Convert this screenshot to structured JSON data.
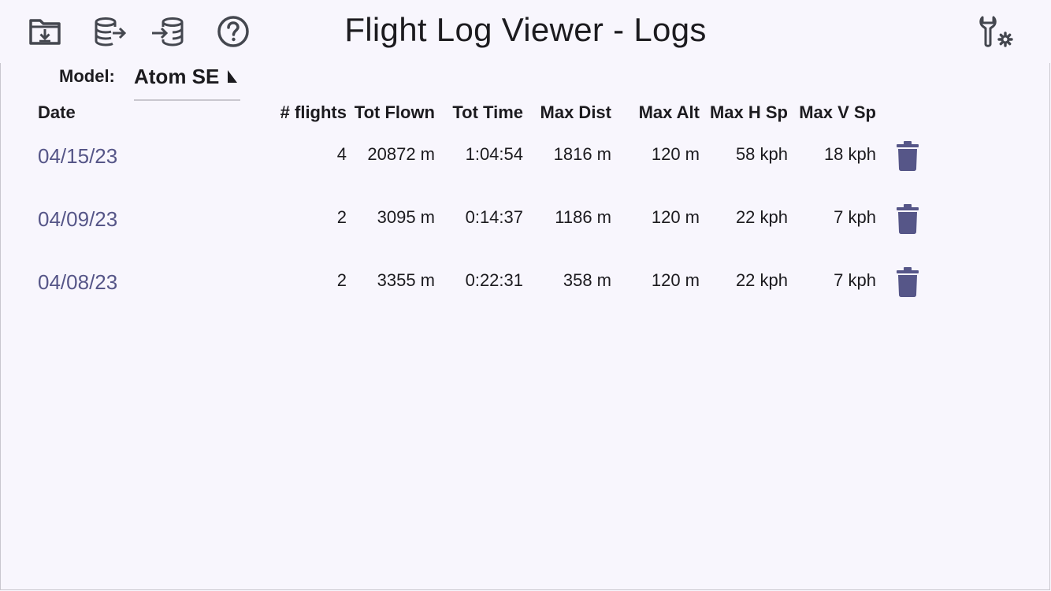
{
  "toolbar": {
    "import_icon": "folder-download-icon",
    "export_icon": "database-export-icon",
    "import_db_icon": "database-import-icon",
    "help_icon": "help-circle-icon",
    "settings_icon": "wrench-gear-icon"
  },
  "header": {
    "title": "Flight Log Viewer - Logs"
  },
  "model": {
    "label": "Model:",
    "value": "Atom SE"
  },
  "table": {
    "columns": [
      "Date",
      "# flights",
      "Tot Flown",
      "Tot Time",
      "Max Dist",
      "Max Alt",
      "Max H Sp",
      "Max V Sp"
    ],
    "rows": [
      {
        "date": "04/15/23",
        "flights": "4",
        "flown": "20872 m",
        "time": "1:04:54",
        "dist": "1816 m",
        "alt": "120 m",
        "hsp": "58 kph",
        "vsp": "18 kph"
      },
      {
        "date": "04/09/23",
        "flights": "2",
        "flown": "3095 m",
        "time": "0:14:37",
        "dist": "1186 m",
        "alt": "120 m",
        "hsp": "22 kph",
        "vsp": "7 kph"
      },
      {
        "date": "04/08/23",
        "flights": "2",
        "flown": "3355 m",
        "time": "0:22:31",
        "dist": "358 m",
        "alt": "120 m",
        "hsp": "22 kph",
        "vsp": "7 kph"
      }
    ]
  },
  "colors": {
    "accent": "#565688",
    "background": "#f8f6fd",
    "icon": "#44474f"
  }
}
